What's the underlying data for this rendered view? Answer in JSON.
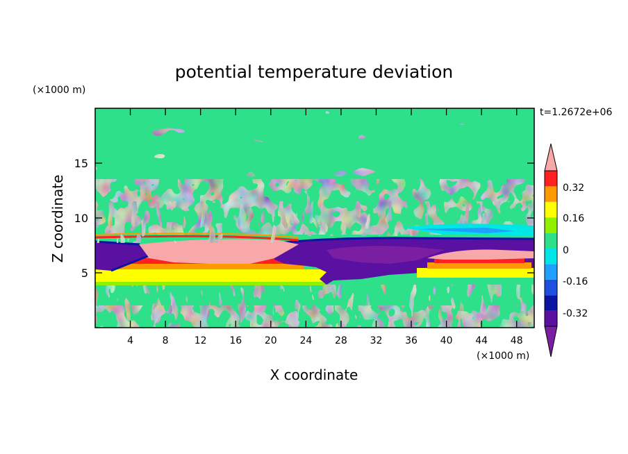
{
  "chart_data": {
    "type": "heatmap",
    "title": "potential temperature deviation",
    "time_label": "t=1.2672e+06",
    "xlabel": "X coordinate",
    "ylabel": "Z coordinate",
    "x_unit": "(×1000 m)",
    "y_unit": "(×1000 m)",
    "xlim": [
      0,
      50
    ],
    "ylim": [
      0,
      20
    ],
    "x_ticks": [
      4,
      8,
      12,
      16,
      20,
      24,
      28,
      32,
      36,
      40,
      44,
      48
    ],
    "y_ticks": [
      5,
      10,
      15
    ],
    "background_level": "0 to 0.08",
    "regions": [
      {
        "name": "near-surface noise",
        "x": [
          0,
          50
        ],
        "z": [
          0,
          4
        ],
        "level": "0 to 0.08"
      },
      {
        "name": "upper layer",
        "x": [
          0,
          50
        ],
        "z": [
          11,
          20
        ],
        "level": "0 to 0.08"
      },
      {
        "name": "warm band",
        "x": [
          0,
          27
        ],
        "z": [
          4,
          5
        ],
        "level": "0.16 to 0.24"
      },
      {
        "name": "warm band",
        "x": [
          0,
          27
        ],
        "z": [
          5,
          5.8
        ],
        "level": "0.24 to 0.32"
      },
      {
        "name": "warm pool",
        "x": [
          5,
          21
        ],
        "z": [
          5.8,
          7.8
        ],
        "level": ">0.4"
      },
      {
        "name": "cold pool",
        "x": [
          0,
          4
        ],
        "z": [
          5.8,
          7.8
        ],
        "level": "-0.4 to -0.32"
      },
      {
        "name": "cold anomaly",
        "x": [
          20,
          50
        ],
        "z": [
          4.2,
          7.8
        ],
        "level": "-0.4 to -0.32"
      },
      {
        "name": "warm pool",
        "x": [
          38,
          50
        ],
        "z": [
          5,
          7
        ],
        "level": ">0.4"
      },
      {
        "name": "cool patch",
        "x": [
          35,
          50
        ],
        "z": [
          8.5,
          9.5
        ],
        "level": "-0.08 to 0"
      }
    ],
    "colorbar": {
      "tick_labels": [
        "0.32",
        "0.16",
        "0",
        "-0.16",
        "-0.32"
      ],
      "levels": [
        {
          "range": "< -0.4",
          "color": "#7a1fa2"
        },
        {
          "range": "-0.4 to -0.32",
          "color": "#5a10a0"
        },
        {
          "range": "-0.32 to -0.24",
          "color": "#0a14a0"
        },
        {
          "range": "-0.24 to -0.16",
          "color": "#1f4fe0"
        },
        {
          "range": "-0.16 to -0.08",
          "color": "#1fa0ff"
        },
        {
          "range": "-0.08 to 0",
          "color": "#00e6e6"
        },
        {
          "range": "0 to 0.08",
          "color": "#2ee08a"
        },
        {
          "range": "0.08 to 0.16",
          "color": "#8ff000"
        },
        {
          "range": "0.16 to 0.24",
          "color": "#ffff00"
        },
        {
          "range": "0.24 to 0.32",
          "color": "#ff9900"
        },
        {
          "range": "0.32 to 0.4",
          "color": "#ff2020"
        },
        {
          "range": "> 0.4",
          "color": "#f8a8a8"
        }
      ]
    }
  }
}
